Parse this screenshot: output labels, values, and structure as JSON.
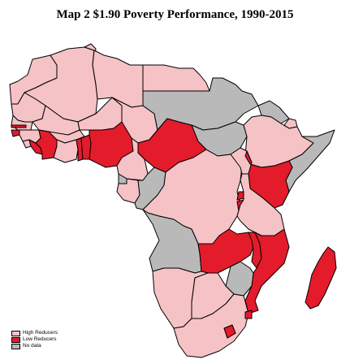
{
  "title": "Map 2 $1.90 Poverty Performance, 1990-2015",
  "colors": {
    "high": "#f5c2c6",
    "low": "#e31b2b",
    "nodata": "#b9b9b9",
    "border": "#000000"
  },
  "legend": [
    {
      "label": "High Reducers",
      "key": "high"
    },
    {
      "label": "Low Reducers",
      "key": "low"
    },
    {
      "label": "No data",
      "key": "nodata"
    }
  ],
  "countries": {
    "morocco": "high",
    "algeria": "high",
    "tunisia": "high",
    "libya": "high",
    "egypt": "high",
    "mauritania": "high",
    "mali": "high",
    "niger": "high",
    "chad": "high",
    "sudan": "nodata",
    "south-sudan": "nodata",
    "eritrea": "nodata",
    "ethiopia": "high",
    "djibouti": "high",
    "somalia": "nodata",
    "senegal": "high",
    "gambia": "low",
    "guinea-bissau": "low",
    "guinea": "high",
    "sierra-leone": "high",
    "liberia": "low",
    "cote-divoire": "low",
    "burkina-faso": "high",
    "ghana": "high",
    "togo": "low",
    "benin": "low",
    "nigeria": "low",
    "cameroon": "high",
    "car": "low",
    "equatorial-guinea": "nodata",
    "gabon": "high",
    "congo": "nodata",
    "drc": "high",
    "uganda": "high",
    "kenya": "low",
    "rwanda": "low",
    "burundi": "low",
    "tanzania": "high",
    "angola": "nodata",
    "zambia": "low",
    "malawi": "low",
    "mozambique": "low",
    "zimbabwe": "nodata",
    "namibia": "high",
    "botswana": "high",
    "south-africa": "high",
    "lesotho": "low",
    "swaziland": "low",
    "madagascar": "low"
  }
}
